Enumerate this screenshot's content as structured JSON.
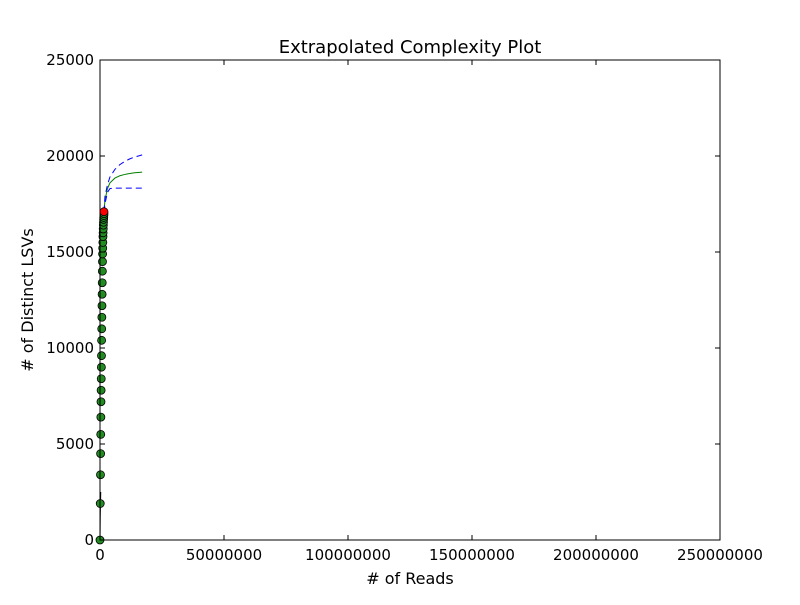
{
  "chart_data": {
    "type": "scatter",
    "title": "Extrapolated Complexity Plot",
    "xlabel": "# of Reads",
    "ylabel": "# of Distinct LSVs",
    "xlim": [
      0,
      250000000
    ],
    "ylim": [
      0,
      25000
    ],
    "x_ticks": [
      0,
      50000000,
      100000000,
      150000000,
      200000000,
      250000000
    ],
    "x_tick_labels": [
      "0",
      "50000000",
      "100000000",
      "150000000",
      "200000000",
      "250000000"
    ],
    "y_ticks": [
      0,
      5000,
      10000,
      15000,
      20000,
      25000
    ],
    "y_tick_labels": [
      "0",
      "5000",
      "10000",
      "15000",
      "20000",
      "25000"
    ],
    "grid": false,
    "series": [
      {
        "kind": "scatter",
        "color": "#228b22",
        "x": [
          0,
          100000,
          200000,
          250000,
          300000,
          350000,
          400000,
          450000,
          500000,
          550000,
          600000,
          650000,
          700000,
          750000,
          800000,
          850000,
          900000,
          950000,
          1000000,
          1050000,
          1100000,
          1150000,
          1200000,
          1250000,
          1300000,
          1350000,
          1400000,
          1450000,
          1500000,
          1550000,
          1600000
        ],
        "y": [
          0,
          1900,
          3400,
          4500,
          5500,
          6400,
          7200,
          7800,
          8400,
          9000,
          9600,
          10400,
          11000,
          11600,
          12200,
          12800,
          13400,
          14000,
          14500,
          14900,
          15200,
          15500,
          15800,
          16000,
          16200,
          16400,
          16550,
          16700,
          16800,
          16900,
          17000
        ]
      },
      {
        "kind": "line",
        "color": "#000000",
        "x": [
          0,
          50000,
          100000,
          200000,
          300000
        ],
        "y": [
          0,
          500,
          1200,
          1900,
          2500
        ]
      },
      {
        "kind": "line",
        "color": "#008000",
        "x": [
          1600000,
          2000000,
          3000000,
          4000000,
          6000000,
          8000000,
          10000000,
          12000000,
          14000000,
          16000000,
          17000000
        ],
        "y": [
          17100,
          17700,
          18300,
          18600,
          18850,
          18970,
          19040,
          19090,
          19130,
          19150,
          19160
        ]
      },
      {
        "kind": "line",
        "style": "dashed",
        "color": "#0000ff",
        "x": [
          1600000,
          2000000,
          3000000,
          4000000,
          6000000,
          8000000,
          10000000,
          12000000,
          14000000,
          16000000,
          17000000
        ],
        "y": [
          17100,
          17500,
          18100,
          18300,
          18330,
          18330,
          18330,
          18330,
          18330,
          18330,
          18330
        ]
      },
      {
        "kind": "line",
        "style": "dashed",
        "color": "#0000ff",
        "x": [
          1600000,
          2000000,
          3000000,
          4000000,
          6000000,
          8000000,
          10000000,
          12000000,
          14000000,
          16000000,
          17000000
        ],
        "y": [
          17100,
          17900,
          18500,
          18900,
          19300,
          19550,
          19720,
          19850,
          19950,
          20020,
          20060
        ]
      },
      {
        "kind": "point",
        "color": "#ff0000",
        "x": [
          1600000
        ],
        "y": [
          17100
        ]
      }
    ]
  }
}
